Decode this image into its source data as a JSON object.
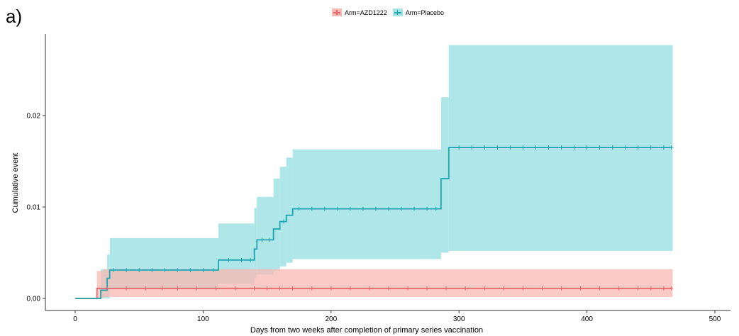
{
  "panel_label": "a)",
  "legend": [
    {
      "label": "Arm=AZD1222",
      "fill": "#f8b9b3",
      "line": "#e8666b"
    },
    {
      "label": "Arm=Placebo",
      "fill": "#a6e4e7",
      "line": "#1aa6b0"
    }
  ],
  "chart_data": {
    "type": "line",
    "subtype": "kaplan-meier cumulative event",
    "xlabel": "Days from two weeks after completion of primary series vaccination",
    "ylabel": "Cumulative event",
    "xlim": [
      0,
      500
    ],
    "ylim": [
      0,
      0.028
    ],
    "xticks": [
      0,
      100,
      200,
      300,
      400,
      500
    ],
    "yticks": [
      0.0,
      0.01,
      0.02
    ],
    "ytick_labels": [
      "0.00",
      "0.01",
      "0.02"
    ],
    "grid": false,
    "legend_position": "top",
    "series": [
      {
        "name": "Arm=AZD1222",
        "color": "#e8666b",
        "fill": "#f8b9b3",
        "steps": [
          [
            0,
            0.0
          ],
          [
            17,
            0.0
          ],
          [
            17,
            0.0011
          ],
          [
            467,
            0.0011
          ]
        ],
        "ci": [
          {
            "x0": 17,
            "x1": 22,
            "lo": 0.0,
            "hi": 0.003
          },
          {
            "x0": 22,
            "x1": 467,
            "lo": 0.00015,
            "hi": 0.0032
          }
        ],
        "censor_marks": [
          25,
          40,
          55,
          68,
          80,
          95,
          110,
          125,
          140,
          150,
          160,
          170,
          185,
          200,
          215,
          230,
          245,
          260,
          275,
          290,
          305,
          320,
          335,
          350,
          365,
          380,
          395,
          410,
          425,
          440,
          450,
          460,
          466
        ]
      },
      {
        "name": "Arm=Placebo",
        "color": "#1aa6b0",
        "fill": "#a6e4e7",
        "steps": [
          [
            0,
            0.0
          ],
          [
            20,
            0.0
          ],
          [
            20,
            0.0009
          ],
          [
            25,
            0.0009
          ],
          [
            25,
            0.0022
          ],
          [
            27,
            0.0022
          ],
          [
            27,
            0.0031
          ],
          [
            112,
            0.0031
          ],
          [
            112,
            0.0042
          ],
          [
            140,
            0.0042
          ],
          [
            140,
            0.0054
          ],
          [
            142,
            0.0054
          ],
          [
            142,
            0.0064
          ],
          [
            155,
            0.0064
          ],
          [
            155,
            0.0076
          ],
          [
            160,
            0.0076
          ],
          [
            160,
            0.0084
          ],
          [
            165,
            0.0084
          ],
          [
            165,
            0.0091
          ],
          [
            170,
            0.0091
          ],
          [
            170,
            0.0098
          ],
          [
            286,
            0.0098
          ],
          [
            286,
            0.0131
          ],
          [
            292,
            0.0131
          ],
          [
            292,
            0.0165
          ],
          [
            467,
            0.0165
          ]
        ],
        "ci": [
          {
            "x0": 20,
            "x1": 25,
            "lo": 0.0,
            "hi": 0.0032
          },
          {
            "x0": 25,
            "x1": 27,
            "lo": 0.0,
            "hi": 0.0048
          },
          {
            "x0": 27,
            "x1": 112,
            "lo": 0.001,
            "hi": 0.0066
          },
          {
            "x0": 112,
            "x1": 140,
            "lo": 0.0016,
            "hi": 0.0082
          },
          {
            "x0": 140,
            "x1": 142,
            "lo": 0.0022,
            "hi": 0.0099
          },
          {
            "x0": 142,
            "x1": 155,
            "lo": 0.0026,
            "hi": 0.0111
          },
          {
            "x0": 155,
            "x1": 160,
            "lo": 0.003,
            "hi": 0.0131
          },
          {
            "x0": 160,
            "x1": 165,
            "lo": 0.0035,
            "hi": 0.0144
          },
          {
            "x0": 165,
            "x1": 170,
            "lo": 0.0039,
            "hi": 0.0154
          },
          {
            "x0": 170,
            "x1": 286,
            "lo": 0.0043,
            "hi": 0.0163
          },
          {
            "x0": 286,
            "x1": 292,
            "lo": 0.005,
            "hi": 0.022
          },
          {
            "x0": 292,
            "x1": 467,
            "lo": 0.0052,
            "hi": 0.0277
          }
        ],
        "censor_marks": [
          30,
          40,
          50,
          60,
          70,
          80,
          90,
          100,
          108,
          120,
          130,
          137,
          146,
          152,
          163,
          175,
          185,
          195,
          205,
          215,
          225,
          235,
          245,
          255,
          265,
          275,
          282,
          300,
          310,
          320,
          330,
          340,
          350,
          360,
          370,
          380,
          390,
          400,
          410,
          420,
          430,
          440,
          450,
          460,
          466
        ]
      }
    ]
  }
}
